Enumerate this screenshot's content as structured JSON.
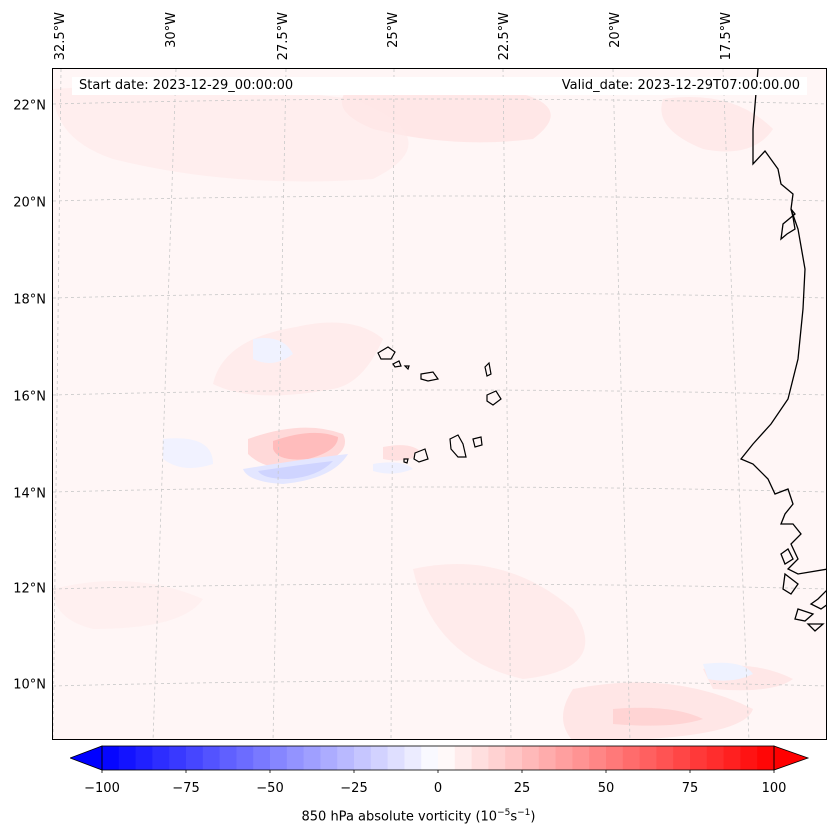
{
  "map": {
    "start_date": "Start date: 2023-12-29_00:00:00",
    "valid_date": "Valid_date: 2023-12-29T07:00:00.00",
    "lat_labels": [
      "22°N",
      "20°N",
      "18°N",
      "16°N",
      "14°N",
      "12°N",
      "10°N"
    ],
    "lon_labels": [
      "32.5°W",
      "30°W",
      "27.5°W",
      "25°W",
      "22.5°W",
      "20°W",
      "17.5°W"
    ],
    "field": "850 hPa absolute vorticity",
    "colors": {
      "neg_max": "#0000ff",
      "pos_max": "#ff0000",
      "coast": "#000000",
      "grid": "#bbbbbb"
    }
  },
  "colorbar": {
    "label_prefix": "850 hPa absolute vorticity (10",
    "label_exp1": "−5",
    "label_mid": "s",
    "label_exp2": "−1",
    "label_suffix": ")",
    "min": -100,
    "max": 100,
    "ticks": [
      "−100",
      "−75",
      "−50",
      "−25",
      "0",
      "25",
      "50",
      "75",
      "100"
    ]
  }
}
